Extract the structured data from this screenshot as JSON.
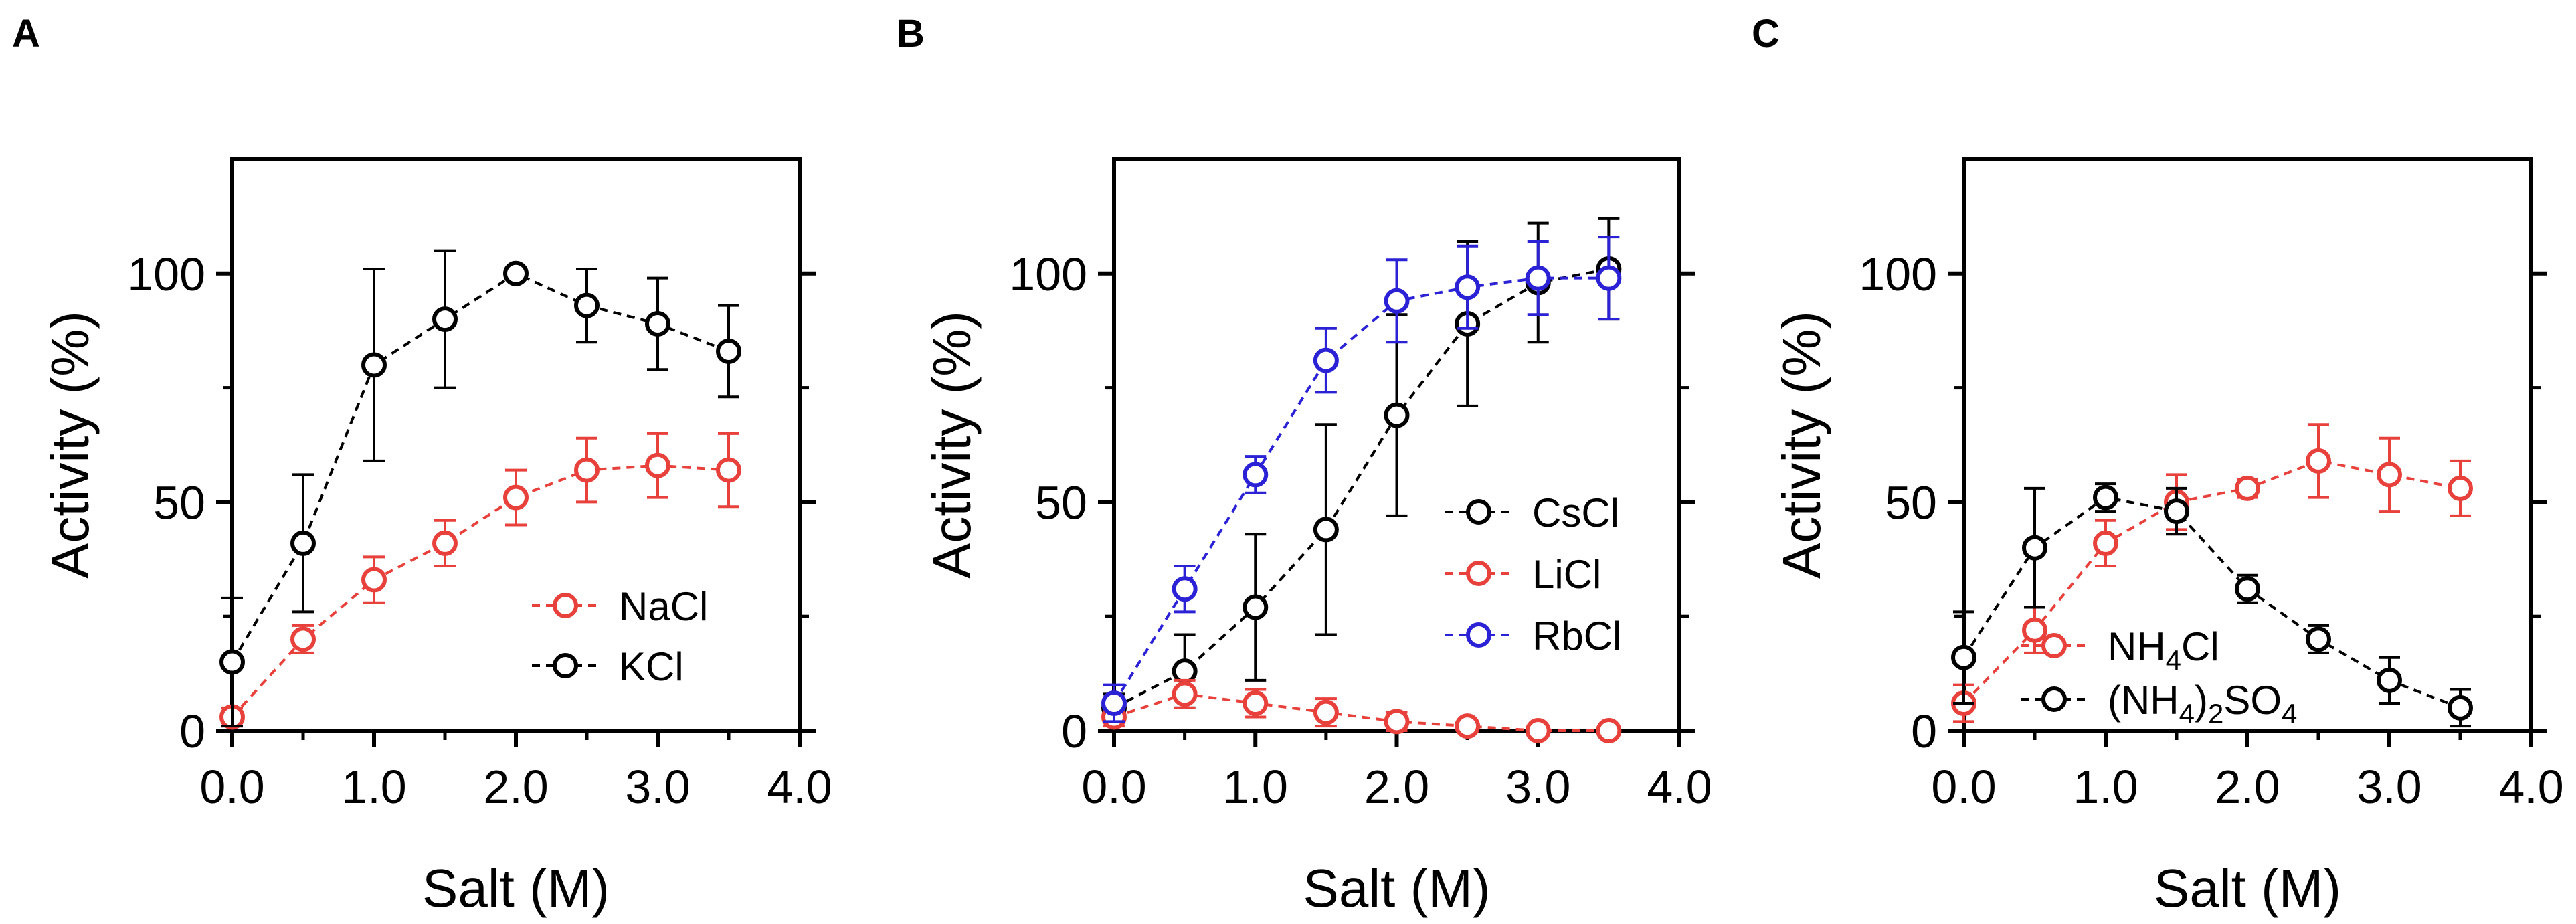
{
  "figure": {
    "x_label": "Salt (M)",
    "y_label": "Activity (%)"
  },
  "chart_data": [
    {
      "panel": "A",
      "type": "line",
      "xlabel": "Salt (M)",
      "ylabel": "Activity (%)",
      "xlim": [
        0.0,
        4.0
      ],
      "ylim": [
        0,
        125
      ],
      "x_ticks": [
        "0.0",
        "1.0",
        "2.0",
        "3.0",
        "4.0"
      ],
      "y_ticks": [
        "0",
        "50",
        "100"
      ],
      "legend_position": "bottom-right",
      "series": [
        {
          "name": "NaCl",
          "legend_main": "NaCl",
          "legend_sub": "",
          "legend_tail": "",
          "legend_sub2": "",
          "color": "#e8413c",
          "x": [
            0.0,
            0.5,
            1.0,
            1.5,
            2.0,
            2.5,
            3.0,
            3.5
          ],
          "y": [
            3,
            20,
            33,
            41,
            51,
            57,
            58,
            57
          ],
          "err": [
            2,
            3,
            5,
            5,
            6,
            7,
            7,
            8
          ]
        },
        {
          "name": "KCl",
          "legend_main": "KCl",
          "legend_sub": "",
          "legend_tail": "",
          "legend_sub2": "",
          "color": "#000000",
          "x": [
            0.0,
            0.5,
            1.0,
            1.5,
            2.0,
            2.5,
            3.0,
            3.5
          ],
          "y": [
            15,
            41,
            80,
            90,
            100,
            93,
            89,
            83
          ],
          "err": [
            14,
            15,
            21,
            15,
            1,
            8,
            10,
            10
          ]
        }
      ]
    },
    {
      "panel": "B",
      "type": "line",
      "xlabel": "Salt (M)",
      "ylabel": "Activity (%)",
      "xlim": [
        0.0,
        4.0
      ],
      "ylim": [
        0,
        125
      ],
      "x_ticks": [
        "0.0",
        "1.0",
        "2.0",
        "3.0",
        "4.0"
      ],
      "y_ticks": [
        "0",
        "50",
        "100"
      ],
      "legend_position": "bottom-right",
      "series": [
        {
          "name": "CsCl",
          "legend_main": "CsCl",
          "legend_sub": "",
          "legend_tail": "",
          "legend_sub2": "",
          "color": "#000000",
          "x": [
            0.0,
            0.5,
            1.0,
            1.5,
            2.0,
            2.5,
            3.0,
            3.5
          ],
          "y": [
            5,
            13,
            27,
            44,
            69,
            89,
            98,
            101
          ],
          "err": [
            3,
            8,
            16,
            23,
            22,
            18,
            13,
            11
          ]
        },
        {
          "name": "LiCl",
          "legend_main": "LiCl",
          "legend_sub": "",
          "legend_tail": "",
          "legend_sub2": "",
          "color": "#e8413c",
          "x": [
            0.0,
            0.5,
            1.0,
            1.5,
            2.0,
            2.5,
            3.0,
            3.5
          ],
          "y": [
            3,
            8,
            6,
            4,
            2,
            1,
            0,
            0
          ],
          "err": [
            2,
            3,
            3,
            3,
            2,
            1,
            1,
            1
          ]
        },
        {
          "name": "RbCl",
          "legend_main": "RbCl",
          "legend_sub": "",
          "legend_tail": "",
          "legend_sub2": "",
          "color": "#2b22d6",
          "x": [
            0.0,
            0.5,
            1.0,
            1.5,
            2.0,
            2.5,
            3.0,
            3.5
          ],
          "y": [
            6,
            31,
            56,
            81,
            94,
            97,
            99,
            99
          ],
          "err": [
            4,
            5,
            4,
            7,
            9,
            9,
            8,
            9
          ]
        }
      ]
    },
    {
      "panel": "C",
      "type": "line",
      "xlabel": "Salt (M)",
      "ylabel": "Activity (%)",
      "xlim": [
        0.0,
        4.0
      ],
      "ylim": [
        0,
        125
      ],
      "x_ticks": [
        "0.0",
        "1.0",
        "2.0",
        "3.0",
        "4.0"
      ],
      "y_ticks": [
        "0",
        "50",
        "100"
      ],
      "legend_position": "bottom-center",
      "series": [
        {
          "name": "NH4Cl",
          "legend_main": "NH",
          "legend_sub": "4",
          "legend_tail": "Cl",
          "legend_sub2": "",
          "color": "#e8413c",
          "x": [
            0.0,
            0.5,
            1.0,
            1.5,
            2.0,
            2.5,
            3.0,
            3.5
          ],
          "y": [
            6,
            22,
            41,
            50,
            53,
            59,
            56,
            53
          ],
          "err": [
            4,
            5,
            5,
            6,
            2,
            8,
            8,
            6
          ]
        },
        {
          "name": "(NH4)2SO4",
          "legend_main": "(NH",
          "legend_sub": "4",
          "legend_tail": ")",
          "legend_sub2": "2",
          "legend_end": "SO",
          "legend_sub3": "4",
          "color": "#000000",
          "x": [
            0.0,
            0.5,
            1.0,
            1.5,
            2.0,
            2.5,
            3.0,
            3.5
          ],
          "y": [
            16,
            40,
            51,
            48,
            31,
            20,
            11,
            5
          ],
          "err": [
            10,
            13,
            3,
            5,
            3,
            3,
            5,
            4
          ]
        }
      ]
    }
  ]
}
